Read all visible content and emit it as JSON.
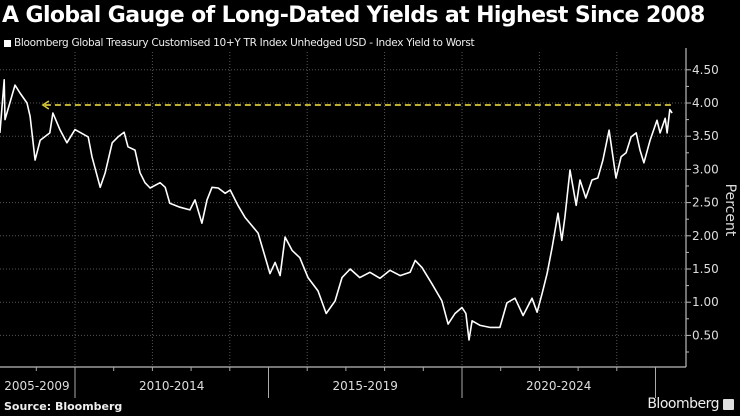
{
  "chart_data": {
    "type": "line",
    "title": "A Global Gauge of Long-Dated Yields at Highest Since 2008",
    "legend": [
      {
        "name": "Bloomberg Global Treasury Customised 10+Y TR Index Unhedged USD - Index Yield to Worst",
        "color": "#ffffff"
      }
    ],
    "legend_placement": "top-left",
    "ylabel": "Percent",
    "y_axis_side": "right",
    "ylim": [
      0,
      4.8
    ],
    "yticks": [
      "0.50",
      "1.00",
      "1.50",
      "2.00",
      "2.50",
      "3.00",
      "3.50",
      "4.00",
      "4.50"
    ],
    "xlim": [
      2008.06,
      2025.9
    ],
    "x_groups": [
      "2005-2009",
      "2010-2014",
      "2015-2019",
      "2020-2024"
    ],
    "grid": true,
    "line_color": "#ffffff",
    "annotation": {
      "type": "dashed-arrow-line",
      "value": 3.97,
      "from": 2009.17,
      "to": 2025.43,
      "color": "#d8c63a"
    },
    "series": [
      {
        "x": [
          2008.06,
          2008.17,
          2008.19,
          2008.45,
          2008.58,
          2008.76,
          2008.84,
          2008.97,
          2009.1,
          2009.35,
          2009.43,
          2009.61,
          2009.79,
          2010.0,
          2010.34,
          2010.44,
          2010.65,
          2010.78,
          2010.96,
          2011.11,
          2011.27,
          2011.37,
          2011.55,
          2011.68,
          2011.81,
          2011.94,
          2012.2,
          2012.33,
          2012.45,
          2012.71,
          2012.97,
          2013.1,
          2013.28,
          2013.41,
          2013.54,
          2013.7,
          2013.88,
          2014.01,
          2014.21,
          2014.39,
          2014.73,
          2015.04,
          2015.17,
          2015.3,
          2015.43,
          2015.61,
          2015.81,
          2016.02,
          2016.28,
          2016.49,
          2016.72,
          2016.9,
          2017.11,
          2017.36,
          2017.62,
          2017.88,
          2018.14,
          2018.4,
          2018.66,
          2018.79,
          2018.97,
          2019.22,
          2019.48,
          2019.64,
          2019.82,
          2020.0,
          2020.1,
          2020.18,
          2020.26,
          2020.47,
          2020.72,
          2020.98,
          2021.16,
          2021.37,
          2021.58,
          2021.81,
          2021.94,
          2022.07,
          2022.2,
          2022.33,
          2022.48,
          2022.58,
          2022.66,
          2022.79,
          2022.95,
          2023.05,
          2023.2,
          2023.36,
          2023.51,
          2023.64,
          2023.8,
          2023.98,
          2024.11,
          2024.24,
          2024.37,
          2024.5,
          2024.6,
          2024.7,
          2024.86,
          2025.04,
          2025.12,
          2025.25,
          2025.3,
          2025.37,
          2025.43
        ],
        "y": [
          3.55,
          4.35,
          3.75,
          4.27,
          4.15,
          4.0,
          3.8,
          3.14,
          3.44,
          3.55,
          3.85,
          3.6,
          3.4,
          3.6,
          3.49,
          3.19,
          2.73,
          2.95,
          3.4,
          3.49,
          3.56,
          3.34,
          3.29,
          2.95,
          2.8,
          2.72,
          2.8,
          2.73,
          2.49,
          2.43,
          2.39,
          2.54,
          2.19,
          2.54,
          2.73,
          2.72,
          2.64,
          2.69,
          2.46,
          2.28,
          2.04,
          1.43,
          1.6,
          1.4,
          1.98,
          1.78,
          1.67,
          1.37,
          1.17,
          0.83,
          1.02,
          1.37,
          1.5,
          1.37,
          1.45,
          1.36,
          1.48,
          1.4,
          1.45,
          1.63,
          1.52,
          1.28,
          1.02,
          0.67,
          0.83,
          0.92,
          0.83,
          0.43,
          0.72,
          0.65,
          0.62,
          0.62,
          0.99,
          1.06,
          0.8,
          1.06,
          0.85,
          1.13,
          1.43,
          1.83,
          2.34,
          1.93,
          2.28,
          2.99,
          2.46,
          2.84,
          2.57,
          2.84,
          2.87,
          3.14,
          3.59,
          2.87,
          3.19,
          3.25,
          3.49,
          3.55,
          3.29,
          3.1,
          3.44,
          3.74,
          3.55,
          3.77,
          3.55,
          3.9,
          3.85
        ]
      }
    ]
  },
  "footer": {
    "source": "Source: Bloomberg",
    "brand": "Bloomberg"
  }
}
